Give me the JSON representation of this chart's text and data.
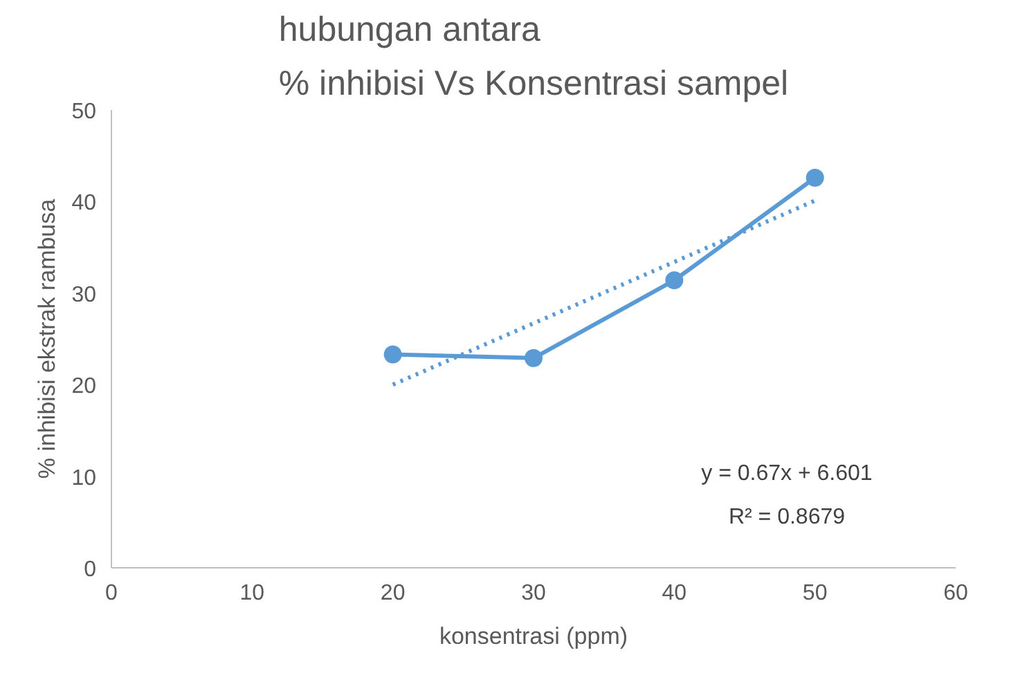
{
  "chart_data": {
    "type": "line",
    "title": "hubungan antara\n% inhibisi Vs Konsentrasi sampel",
    "xlabel": "konsentrasi (ppm)",
    "ylabel": "% inhibisi ekstrak rambusa",
    "x": [
      20,
      30,
      40,
      50
    ],
    "series": [
      {
        "color": "#5b9bd5",
        "values": [
          23.3,
          22.9,
          31.4,
          42.6
        ],
        "marker": "circle",
        "line_style": "solid"
      },
      {
        "color": "#5b9bd5",
        "x": [
          20,
          50
        ],
        "values": [
          20.0,
          40.1
        ],
        "marker": "none",
        "line_style": "dotted"
      }
    ],
    "annotations": [
      "y = 0.67x + 6.601",
      "R² = 0.8679"
    ],
    "xlim": [
      0,
      60
    ],
    "xticks": [
      0,
      10,
      20,
      30,
      40,
      50,
      60
    ],
    "ylim": [
      0,
      50
    ],
    "yticks": [
      0,
      10,
      20,
      30,
      40,
      50
    ],
    "grid": false
  }
}
